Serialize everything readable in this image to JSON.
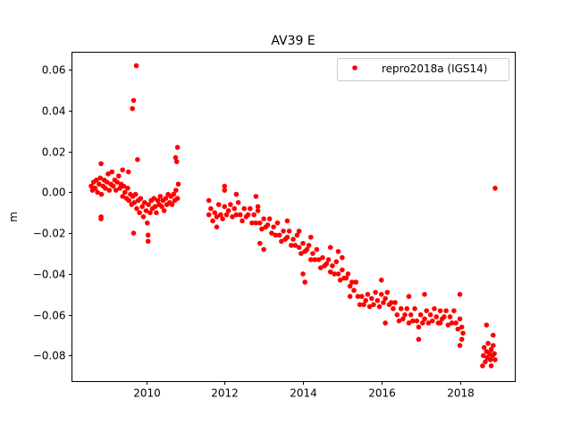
{
  "chart_data": {
    "type": "scatter",
    "title": "AV39 E",
    "xlabel": "",
    "ylabel": "m",
    "xlim": [
      2008.108,
      2019.413
    ],
    "ylim": [
      -0.0927,
      0.0686
    ],
    "xticks": [
      2010,
      2012,
      2014,
      2016,
      2018
    ],
    "xtick_labels": [
      "2010",
      "2012",
      "2014",
      "2016",
      "2018"
    ],
    "yticks": [
      -0.08,
      -0.06,
      -0.04,
      -0.02,
      0.0,
      0.02,
      0.04,
      0.06
    ],
    "ytick_labels": [
      "−0.08",
      "−0.06",
      "−0.04",
      "−0.02",
      "0.00",
      "0.02",
      "0.04",
      "0.06"
    ],
    "grid": false,
    "legend": {
      "placement": "top-right",
      "entries": [
        "repro2018a (IGS14)"
      ]
    },
    "series": [
      {
        "name": "repro2018a (IGS14)",
        "color": "#ff0000",
        "marker": "circle",
        "points": [
          [
            2008.6,
            0.003
          ],
          [
            2008.63,
            0.001
          ],
          [
            2008.66,
            0.005
          ],
          [
            2008.7,
            0.002
          ],
          [
            2008.73,
            0.006
          ],
          [
            2008.76,
            0.0
          ],
          [
            2008.8,
            0.004
          ],
          [
            2008.83,
            0.007
          ],
          [
            2008.86,
            -0.001
          ],
          [
            2008.9,
            0.003
          ],
          [
            2008.93,
            0.006
          ],
          [
            2008.96,
            0.002
          ],
          [
            2009.0,
            0.005
          ],
          [
            2009.03,
            0.009
          ],
          [
            2009.06,
            0.001
          ],
          [
            2009.1,
            0.004
          ],
          [
            2009.13,
            0.01
          ],
          [
            2009.16,
            0.003
          ],
          [
            2009.2,
            0.006
          ],
          [
            2009.23,
            0.001
          ],
          [
            2009.26,
            0.005
          ],
          [
            2009.3,
            0.008
          ],
          [
            2009.33,
            0.002
          ],
          [
            2009.36,
            0.004
          ],
          [
            2009.4,
            -0.002
          ],
          [
            2009.43,
            0.003
          ],
          [
            2009.46,
            0.0
          ],
          [
            2009.5,
            -0.003
          ],
          [
            2009.53,
            0.002
          ],
          [
            2009.56,
            -0.004
          ],
          [
            2009.6,
            -0.001
          ],
          [
            2009.63,
            -0.006
          ],
          [
            2009.66,
            -0.002
          ],
          [
            2009.7,
            -0.005
          ],
          [
            2009.73,
            -0.001
          ],
          [
            2009.76,
            -0.008
          ],
          [
            2009.8,
            -0.004
          ],
          [
            2009.83,
            -0.01
          ],
          [
            2009.86,
            -0.003
          ],
          [
            2009.9,
            -0.007
          ],
          [
            2009.93,
            -0.012
          ],
          [
            2009.96,
            -0.005
          ],
          [
            2010.0,
            -0.009
          ],
          [
            2010.03,
            -0.015
          ],
          [
            2010.06,
            -0.006
          ],
          [
            2010.1,
            -0.01
          ],
          [
            2010.13,
            -0.004
          ],
          [
            2010.16,
            -0.008
          ],
          [
            2010.2,
            -0.003
          ],
          [
            2010.23,
            -0.007
          ],
          [
            2010.26,
            -0.01
          ],
          [
            2010.3,
            -0.004
          ],
          [
            2010.33,
            -0.006
          ],
          [
            2010.36,
            -0.002
          ],
          [
            2010.4,
            -0.007
          ],
          [
            2010.43,
            -0.004
          ],
          [
            2010.46,
            -0.009
          ],
          [
            2010.5,
            -0.003
          ],
          [
            2010.53,
            -0.006
          ],
          [
            2010.56,
            -0.001
          ],
          [
            2010.6,
            -0.005
          ],
          [
            2010.63,
            -0.002
          ],
          [
            2010.66,
            -0.006
          ],
          [
            2010.7,
            -0.001
          ],
          [
            2010.73,
            -0.004
          ],
          [
            2010.76,
            0.001
          ],
          [
            2010.8,
            -0.003
          ],
          [
            2010.82,
            0.004
          ],
          [
            2009.75,
            0.062
          ],
          [
            2009.68,
            0.045
          ],
          [
            2009.65,
            0.041
          ],
          [
            2009.78,
            0.016
          ],
          [
            2009.68,
            -0.02
          ],
          [
            2010.05,
            -0.024
          ],
          [
            2010.05,
            -0.021
          ],
          [
            2010.8,
            0.022
          ],
          [
            2010.75,
            0.017
          ],
          [
            2010.78,
            0.015
          ],
          [
            2008.85,
            0.014
          ],
          [
            2008.85,
            -0.013
          ],
          [
            2008.85,
            -0.012
          ],
          [
            2009.4,
            0.011
          ],
          [
            2009.55,
            0.01
          ],
          [
            2011.6,
            -0.011
          ],
          [
            2011.65,
            -0.008
          ],
          [
            2011.7,
            -0.014
          ],
          [
            2011.75,
            -0.01
          ],
          [
            2011.8,
            -0.012
          ],
          [
            2011.85,
            -0.006
          ],
          [
            2011.9,
            -0.011
          ],
          [
            2011.95,
            -0.013
          ],
          [
            2012.0,
            -0.007
          ],
          [
            2012.05,
            -0.011
          ],
          [
            2012.1,
            -0.009
          ],
          [
            2012.15,
            -0.006
          ],
          [
            2012.2,
            -0.012
          ],
          [
            2012.25,
            -0.008
          ],
          [
            2012.3,
            -0.011
          ],
          [
            2012.35,
            -0.005
          ],
          [
            2012.4,
            -0.011
          ],
          [
            2012.45,
            -0.014
          ],
          [
            2012.5,
            -0.008
          ],
          [
            2012.55,
            -0.012
          ],
          [
            2012.6,
            -0.011
          ],
          [
            2012.65,
            -0.008
          ],
          [
            2012.7,
            -0.015
          ],
          [
            2012.75,
            -0.011
          ],
          [
            2012.8,
            -0.015
          ],
          [
            2012.85,
            -0.009
          ],
          [
            2012.9,
            -0.015
          ],
          [
            2012.95,
            -0.018
          ],
          [
            2013.0,
            -0.013
          ],
          [
            2013.05,
            -0.017
          ],
          [
            2013.1,
            -0.016
          ],
          [
            2013.15,
            -0.013
          ],
          [
            2013.2,
            -0.02
          ],
          [
            2013.25,
            -0.017
          ],
          [
            2013.3,
            -0.021
          ],
          [
            2013.35,
            -0.015
          ],
          [
            2013.4,
            -0.021
          ],
          [
            2013.45,
            -0.024
          ],
          [
            2013.5,
            -0.019
          ],
          [
            2013.55,
            -0.023
          ],
          [
            2013.6,
            -0.022
          ],
          [
            2013.65,
            -0.019
          ],
          [
            2013.7,
            -0.026
          ],
          [
            2013.75,
            -0.023
          ],
          [
            2013.8,
            -0.026
          ],
          [
            2013.85,
            -0.021
          ],
          [
            2013.9,
            -0.027
          ],
          [
            2013.95,
            -0.03
          ],
          [
            2014.0,
            -0.025
          ],
          [
            2014.05,
            -0.029
          ],
          [
            2014.1,
            -0.028
          ],
          [
            2014.15,
            -0.026
          ],
          [
            2014.2,
            -0.033
          ],
          [
            2014.25,
            -0.03
          ],
          [
            2014.3,
            -0.033
          ],
          [
            2014.35,
            -0.028
          ],
          [
            2014.4,
            -0.033
          ],
          [
            2014.45,
            -0.037
          ],
          [
            2014.5,
            -0.032
          ],
          [
            2014.55,
            -0.036
          ],
          [
            2014.6,
            -0.035
          ],
          [
            2014.65,
            -0.033
          ],
          [
            2014.7,
            -0.039
          ],
          [
            2014.75,
            -0.036
          ],
          [
            2014.8,
            -0.04
          ],
          [
            2014.85,
            -0.034
          ],
          [
            2014.9,
            -0.04
          ],
          [
            2014.95,
            -0.043
          ],
          [
            2015.0,
            -0.038
          ],
          [
            2015.05,
            -0.042
          ],
          [
            2015.1,
            -0.042
          ],
          [
            2015.15,
            -0.04
          ],
          [
            2015.2,
            -0.046
          ],
          [
            2015.25,
            -0.044
          ],
          [
            2015.3,
            -0.048
          ],
          [
            2015.35,
            -0.044
          ],
          [
            2015.4,
            -0.051
          ],
          [
            2015.45,
            -0.055
          ],
          [
            2015.5,
            -0.051
          ],
          [
            2015.55,
            -0.055
          ],
          [
            2015.6,
            -0.053
          ],
          [
            2015.65,
            -0.05
          ],
          [
            2015.7,
            -0.056
          ],
          [
            2015.75,
            -0.052
          ],
          [
            2015.8,
            -0.055
          ],
          [
            2015.85,
            -0.049
          ],
          [
            2015.9,
            -0.053
          ],
          [
            2015.95,
            -0.056
          ],
          [
            2016.0,
            -0.05
          ],
          [
            2016.05,
            -0.054
          ],
          [
            2016.1,
            -0.052
          ],
          [
            2016.15,
            -0.049
          ],
          [
            2016.2,
            -0.055
          ],
          [
            2016.25,
            -0.054
          ],
          [
            2016.3,
            -0.057
          ],
          [
            2016.35,
            -0.054
          ],
          [
            2016.4,
            -0.06
          ],
          [
            2016.45,
            -0.063
          ],
          [
            2016.5,
            -0.057
          ],
          [
            2016.55,
            -0.062
          ],
          [
            2016.6,
            -0.06
          ],
          [
            2016.65,
            -0.057
          ],
          [
            2016.7,
            -0.064
          ],
          [
            2016.75,
            -0.06
          ],
          [
            2016.8,
            -0.063
          ],
          [
            2016.85,
            -0.057
          ],
          [
            2016.9,
            -0.063
          ],
          [
            2016.95,
            -0.066
          ],
          [
            2017.0,
            -0.06
          ],
          [
            2017.05,
            -0.064
          ],
          [
            2017.1,
            -0.062
          ],
          [
            2017.15,
            -0.058
          ],
          [
            2017.2,
            -0.064
          ],
          [
            2017.25,
            -0.06
          ],
          [
            2017.3,
            -0.063
          ],
          [
            2017.35,
            -0.057
          ],
          [
            2017.4,
            -0.061
          ],
          [
            2017.45,
            -0.064
          ],
          [
            2017.5,
            -0.058
          ],
          [
            2017.55,
            -0.062
          ],
          [
            2017.6,
            -0.061
          ],
          [
            2017.65,
            -0.058
          ],
          [
            2017.7,
            -0.065
          ],
          [
            2017.75,
            -0.061
          ],
          [
            2017.8,
            -0.064
          ],
          [
            2017.85,
            -0.058
          ],
          [
            2017.9,
            -0.064
          ],
          [
            2017.95,
            -0.067
          ],
          [
            2018.0,
            -0.062
          ],
          [
            2018.05,
            -0.066
          ],
          [
            2018.08,
            -0.069
          ],
          [
            2011.6,
            -0.004
          ],
          [
            2011.8,
            -0.017
          ],
          [
            2012.0,
            0.003
          ],
          [
            2012.0,
            0.001
          ],
          [
            2012.3,
            -0.001
          ],
          [
            2012.8,
            -0.002
          ],
          [
            2012.85,
            -0.007
          ],
          [
            2012.9,
            -0.025
          ],
          [
            2013.0,
            -0.028
          ],
          [
            2013.6,
            -0.014
          ],
          [
            2013.9,
            -0.019
          ],
          [
            2014.0,
            -0.04
          ],
          [
            2014.05,
            -0.044
          ],
          [
            2014.2,
            -0.022
          ],
          [
            2014.7,
            -0.027
          ],
          [
            2014.9,
            -0.029
          ],
          [
            2015.0,
            -0.032
          ],
          [
            2015.2,
            -0.051
          ],
          [
            2016.0,
            -0.043
          ],
          [
            2016.1,
            -0.064
          ],
          [
            2016.7,
            -0.051
          ],
          [
            2016.95,
            -0.072
          ],
          [
            2017.1,
            -0.05
          ],
          [
            2017.5,
            -0.064
          ],
          [
            2018.0,
            -0.05
          ],
          [
            2018.0,
            -0.075
          ],
          [
            2018.05,
            -0.072
          ],
          [
            2018.6,
            -0.08
          ],
          [
            2018.62,
            -0.076
          ],
          [
            2018.65,
            -0.083
          ],
          [
            2018.68,
            -0.078
          ],
          [
            2018.7,
            -0.081
          ],
          [
            2018.72,
            -0.074
          ],
          [
            2018.75,
            -0.079
          ],
          [
            2018.78,
            -0.082
          ],
          [
            2018.8,
            -0.077
          ],
          [
            2018.83,
            -0.08
          ],
          [
            2018.85,
            -0.075
          ],
          [
            2018.88,
            -0.079
          ],
          [
            2018.9,
            -0.082
          ],
          [
            2018.58,
            -0.085
          ],
          [
            2018.8,
            -0.085
          ],
          [
            2018.68,
            -0.065
          ],
          [
            2018.85,
            -0.07
          ],
          [
            2018.9,
            0.002
          ]
        ]
      }
    ]
  }
}
